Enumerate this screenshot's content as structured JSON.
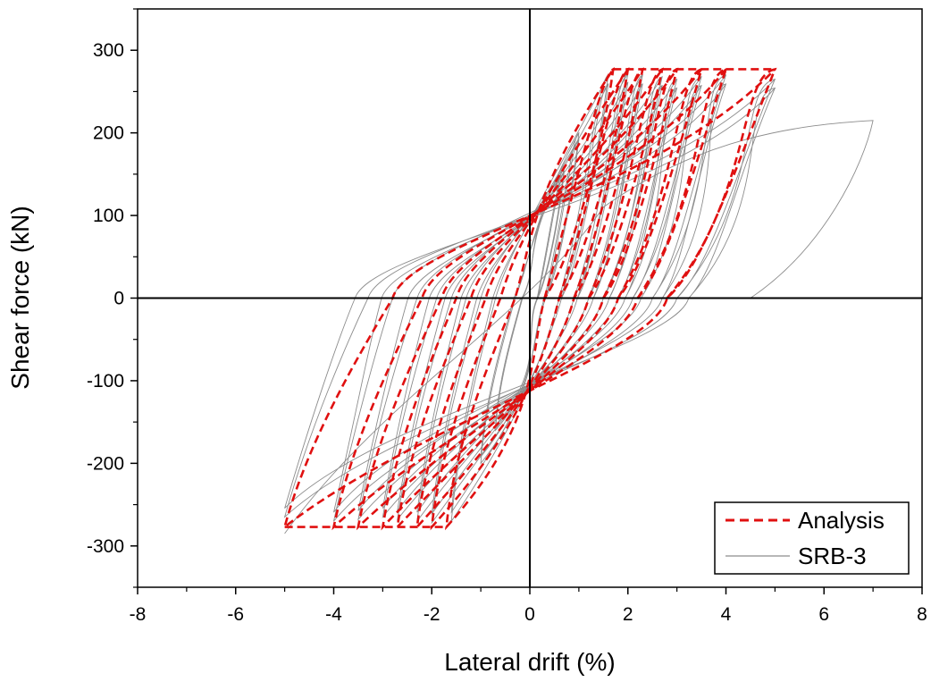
{
  "chart_data": {
    "type": "line",
    "xlabel": "Lateral drift (%)",
    "ylabel": "Shear force (kN)",
    "xlim": [
      -8,
      8
    ],
    "ylim": [
      -350,
      350
    ],
    "x_ticks": [
      -8,
      -6,
      -4,
      -2,
      0,
      2,
      4,
      6,
      8
    ],
    "y_ticks": [
      -300,
      -200,
      -100,
      0,
      100,
      200,
      300
    ],
    "grid": false,
    "zero_lines": true,
    "legend_position": "bottom-right",
    "series": [
      {
        "name": "Analysis",
        "style": "dashed",
        "color": "#e01010",
        "loops": [
          {
            "amplitude": 1.7,
            "peak": 277,
            "x_at_zero_down": 0.3,
            "x_at_zero_up": -0.3
          },
          {
            "amplitude": 2.0,
            "peak": 277,
            "x_at_zero_down": 0.6,
            "x_at_zero_up": -0.6
          },
          {
            "amplitude": 2.3,
            "peak": 277,
            "x_at_zero_down": 0.9,
            "x_at_zero_up": -0.9
          },
          {
            "amplitude": 2.7,
            "peak": 277,
            "x_at_zero_down": 1.2,
            "x_at_zero_up": -1.2
          },
          {
            "amplitude": 3.0,
            "peak": 277,
            "x_at_zero_down": 1.5,
            "x_at_zero_up": -1.5
          },
          {
            "amplitude": 3.5,
            "peak": 277,
            "x_at_zero_down": 1.8,
            "x_at_zero_up": -1.8
          },
          {
            "amplitude": 4.0,
            "peak": 277,
            "x_at_zero_down": 2.2,
            "x_at_zero_up": -2.2
          },
          {
            "amplitude": 5.0,
            "peak": 277,
            "x_at_zero_down": 2.8,
            "x_at_zero_up": -2.8
          }
        ]
      },
      {
        "name": "SRB-3",
        "style": "solid",
        "color": "#8c8c8c",
        "loops": [
          {
            "amplitude": 0.7,
            "peak": 160,
            "x_at_zero_down": 0.15,
            "x_at_zero_up": -0.15
          },
          {
            "amplitude": 1.0,
            "peak": 200,
            "x_at_zero_down": 0.3,
            "x_at_zero_up": -0.3
          },
          {
            "amplitude": 1.6,
            "peak": 270,
            "x_at_zero_down": 0.6,
            "x_at_zero_up": -0.7
          },
          {
            "amplitude": 2.0,
            "peak": 272,
            "x_at_zero_down": 0.9,
            "x_at_zero_up": -1.0
          },
          {
            "amplitude": 2.3,
            "peak": 270,
            "x_at_zero_down": 1.2,
            "x_at_zero_up": -1.3
          },
          {
            "amplitude": 2.7,
            "peak": 268,
            "x_at_zero_down": 1.5,
            "x_at_zero_up": -1.6
          },
          {
            "amplitude": 3.0,
            "peak": 265,
            "x_at_zero_down": 1.8,
            "x_at_zero_up": -1.9
          },
          {
            "amplitude": 3.5,
            "peak": 268,
            "x_at_zero_down": 2.1,
            "x_at_zero_up": -2.3
          },
          {
            "amplitude": 4.0,
            "peak": 270,
            "x_at_zero_down": 2.5,
            "x_at_zero_up": -2.8
          },
          {
            "amplitude": 5.0,
            "peak": 265,
            "x_at_zero_down": 3.0,
            "x_at_zero_up": -3.3
          }
        ],
        "final_push": {
          "from": [
            -5.0,
            -285
          ],
          "to": [
            7.0,
            215
          ],
          "end": [
            4.5,
            0
          ]
        }
      }
    ]
  }
}
